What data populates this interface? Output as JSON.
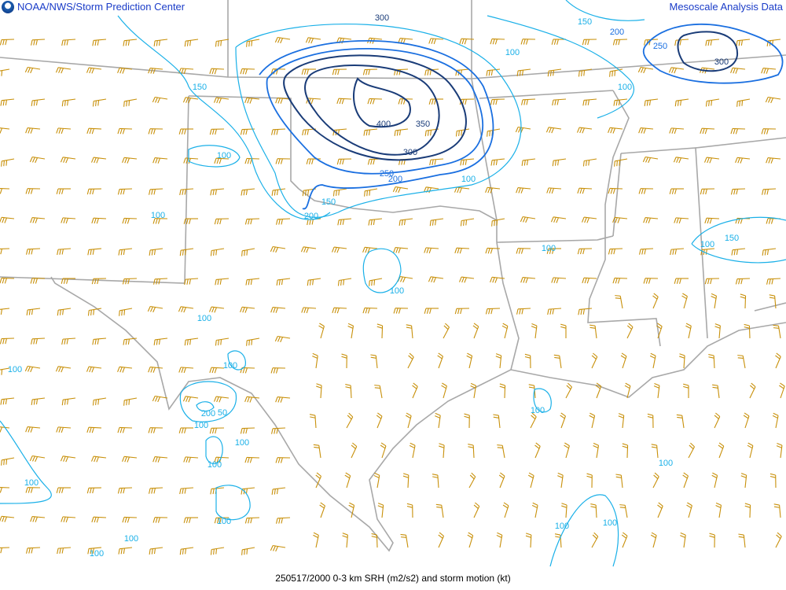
{
  "header": {
    "left_title": "NOAA/NWS/Storm Prediction Center",
    "right_title": "Mesoscale Analysis Data",
    "logo_icon": "noaa-logo-icon"
  },
  "footer": {
    "caption": "250517/2000 0-3 km SRH (m2/s2) and storm motion (kt)"
  },
  "colors": {
    "border": "#a8a8a8",
    "barb": "#c8900a",
    "contour_light": "#1ab0e8",
    "contour_mid": "#1a6fe0",
    "contour_dark": "#1a3c78",
    "title": "#1a3cc8"
  },
  "contour_labels": [
    "300",
    "150",
    "200",
    "250",
    "300",
    "100",
    "100",
    "150",
    "400",
    "350",
    "300",
    "250",
    "200",
    "100",
    "150",
    "200",
    "100",
    "100",
    "100",
    "150",
    "100",
    "100",
    "100",
    "100",
    "100",
    "200",
    "50",
    "100",
    "100",
    "100",
    "100",
    "100",
    "100",
    "100",
    "100",
    "100",
    "100",
    "100"
  ]
}
